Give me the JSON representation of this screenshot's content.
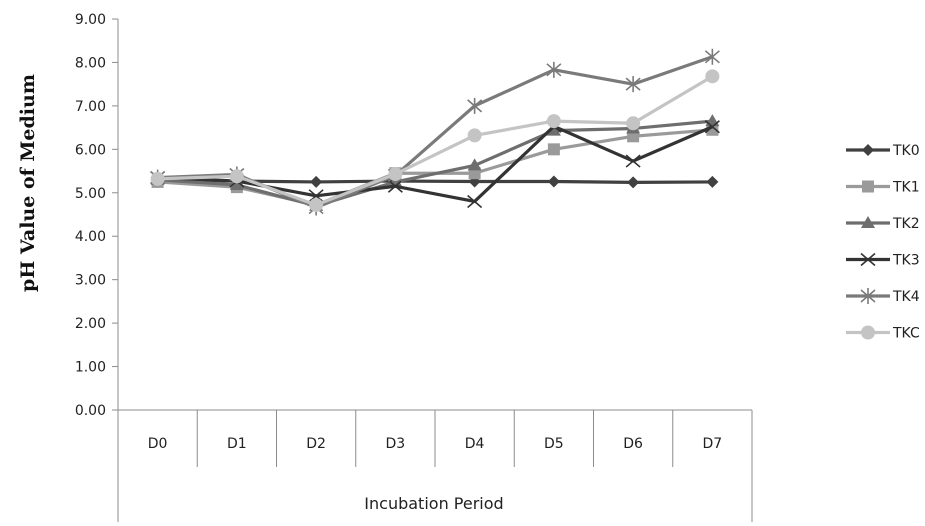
{
  "chart_data": {
    "type": "line",
    "title": "",
    "xlabel": "Incubation Period",
    "ylabel": "pH Value of Medium",
    "ylim": [
      0,
      9
    ],
    "yticks": [
      "0.00",
      "1.00",
      "2.00",
      "3.00",
      "4.00",
      "5.00",
      "6.00",
      "7.00",
      "8.00",
      "9.00"
    ],
    "grid": false,
    "legend_position": "right",
    "categories": [
      "D0",
      "D1",
      "D2",
      "D3",
      "D4",
      "D5",
      "D6",
      "D7"
    ],
    "series": [
      {
        "name": "TK0",
        "marker": "diamond",
        "color": "#404040",
        "values": [
          5.3,
          5.27,
          5.25,
          5.27,
          5.26,
          5.26,
          5.24,
          5.25
        ]
      },
      {
        "name": "TK1",
        "marker": "square",
        "color": "#9a9a9a",
        "values": [
          5.25,
          5.13,
          4.72,
          5.45,
          5.45,
          6.0,
          6.3,
          6.45
        ]
      },
      {
        "name": "TK2",
        "marker": "triangle",
        "color": "#6e6e6e",
        "values": [
          5.3,
          5.18,
          4.7,
          5.25,
          5.63,
          6.43,
          6.48,
          6.65
        ]
      },
      {
        "name": "TK3",
        "marker": "x",
        "color": "#333333",
        "values": [
          5.35,
          5.27,
          4.93,
          5.15,
          4.8,
          6.53,
          5.73,
          6.52
        ]
      },
      {
        "name": "TK4",
        "marker": "star",
        "color": "#7a7a7a",
        "values": [
          5.35,
          5.42,
          4.66,
          5.4,
          7.0,
          7.83,
          7.5,
          8.13
        ]
      },
      {
        "name": "TKC",
        "marker": "circle",
        "color": "#c4c4c4",
        "values": [
          5.32,
          5.38,
          4.72,
          5.43,
          6.32,
          6.65,
          6.6,
          7.68
        ]
      }
    ]
  }
}
